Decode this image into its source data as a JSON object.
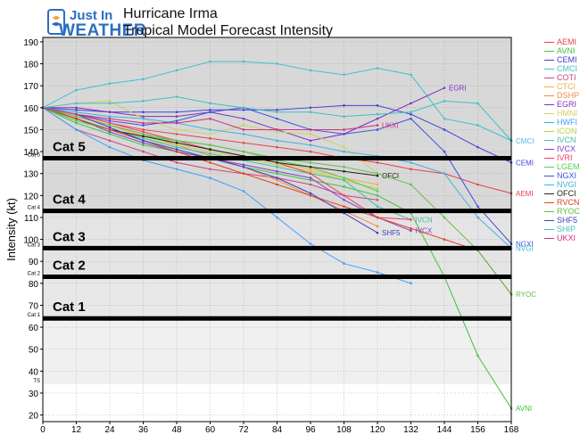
{
  "header": {
    "brand_top": "Just In",
    "brand_bottom": "WEATHER",
    "title_line1": "Hurricane Irma",
    "title_line2": "Tropical Model Forecast Intensity"
  },
  "chart_data": {
    "type": "line",
    "ylabel": "Intensity (kt)",
    "xlabel": "",
    "xlim": [
      0,
      168
    ],
    "ylim": [
      17,
      192
    ],
    "xticks": [
      0,
      12,
      24,
      36,
      48,
      60,
      72,
      84,
      96,
      108,
      120,
      132,
      144,
      156,
      168
    ],
    "yticks": [
      20,
      30,
      40,
      50,
      60,
      70,
      80,
      90,
      100,
      110,
      120,
      130,
      140,
      150,
      160,
      170,
      180,
      190
    ],
    "grid": true,
    "legend_position": "right",
    "categories": [
      {
        "label": "Cat 5",
        "axis_label": "Cat 5",
        "threshold": 137,
        "band_top": 192,
        "band_color": "#d8d8d8"
      },
      {
        "label": "Cat 4",
        "axis_label": "Cat 4",
        "threshold": 113,
        "band_top": 137,
        "band_color": "#d8d8d8"
      },
      {
        "label": "Cat 3",
        "axis_label": "Cat 3",
        "threshold": 96,
        "band_top": 113,
        "band_color": "#e4e4e4"
      },
      {
        "label": "Cat 2",
        "axis_label": "Cat 2",
        "threshold": 83,
        "band_top": 96,
        "band_color": "#e4e4e4"
      },
      {
        "label": "Cat 1",
        "axis_label": "Cat 1",
        "threshold": 64,
        "band_top": 83,
        "band_color": "#e8e8e8"
      },
      {
        "label": "",
        "axis_label": "TS",
        "threshold": 34,
        "band_top": 64,
        "band_color": "#f0f0f0"
      }
    ],
    "series": [
      {
        "name": "AEMI",
        "color": "#e8404a",
        "label": "AEMI",
        "x": [
          0,
          12,
          24,
          36,
          48,
          60,
          72,
          84,
          96,
          108,
          120,
          132,
          144,
          156,
          168
        ],
        "y": [
          160,
          157,
          153,
          150,
          148,
          146,
          144,
          142,
          140,
          137,
          135,
          132,
          130,
          125,
          121
        ]
      },
      {
        "name": "AVNI",
        "color": "#3ec23e",
        "label": "AVNI",
        "x": [
          0,
          12,
          24,
          36,
          48,
          60,
          72,
          84,
          96,
          108,
          120,
          132,
          144,
          156,
          168
        ],
        "y": [
          160,
          153,
          148,
          143,
          140,
          137,
          133,
          130,
          127,
          124,
          120,
          112,
          83,
          47,
          23
        ]
      },
      {
        "name": "CEMI",
        "color": "#4040d8",
        "label": "CEMI",
        "x": [
          0,
          12,
          24,
          36,
          48,
          60,
          72,
          84,
          96,
          108,
          120,
          132,
          144,
          156,
          168
        ],
        "y": [
          160,
          159,
          158,
          158,
          158,
          159,
          159,
          159,
          160,
          161,
          161,
          157,
          150,
          142,
          135
        ]
      },
      {
        "name": "CMCI",
        "color": "#40c0d0",
        "label": "CMCI",
        "x": [
          0,
          12,
          24,
          36,
          48,
          60,
          72,
          84,
          96,
          108,
          120,
          132,
          144,
          156,
          168
        ],
        "y": [
          160,
          168,
          171,
          173,
          177,
          181,
          181,
          180,
          177,
          175,
          178,
          175,
          155,
          152,
          145
        ]
      },
      {
        "name": "COTI",
        "color": "#d04080",
        "label": null,
        "x": [
          0,
          12,
          24,
          36,
          48,
          60,
          72,
          84,
          96,
          108,
          120
        ],
        "y": [
          160,
          150,
          145,
          140,
          135,
          132,
          130,
          128,
          125,
          120,
          118
        ]
      },
      {
        "name": "CTCI",
        "color": "#f0b040",
        "label": null,
        "x": [
          0,
          12,
          24,
          36,
          48,
          60,
          72,
          84,
          96,
          108,
          120
        ],
        "y": [
          160,
          156,
          152,
          147,
          144,
          141,
          138,
          135,
          132,
          128,
          125
        ]
      },
      {
        "name": "DSHP",
        "color": "#f08c40",
        "label": null,
        "x": [
          0,
          12,
          24,
          36,
          48,
          60,
          72,
          84,
          96,
          108,
          120
        ],
        "y": [
          160,
          156,
          152,
          148,
          143,
          138,
          133,
          127,
          120,
          113,
          106
        ]
      },
      {
        "name": "EGRI",
        "color": "#8030c0",
        "label": "EGRI",
        "x": [
          0,
          12,
          24,
          36,
          48,
          60,
          72,
          84,
          96,
          108,
          120,
          132,
          144
        ],
        "y": [
          160,
          160,
          158,
          156,
          156,
          158,
          155,
          150,
          145,
          148,
          155,
          162,
          169
        ]
      },
      {
        "name": "HMNI",
        "color": "#d0d060",
        "label": null,
        "x": [
          0,
          12,
          24,
          36,
          48,
          60,
          72,
          84,
          96,
          108,
          120
        ],
        "y": [
          160,
          162,
          163,
          155,
          150,
          148,
          152,
          149,
          148,
          142,
          130
        ]
      },
      {
        "name": "HWFI",
        "color": "#40a0ff",
        "label": null,
        "x": [
          0,
          12,
          24,
          36,
          48,
          60,
          72,
          84,
          96,
          108,
          120,
          132
        ],
        "y": [
          160,
          150,
          142,
          136,
          132,
          128,
          122,
          110,
          98,
          89,
          85,
          80
        ]
      },
      {
        "name": "ICON",
        "color": "#b8d040",
        "label": null,
        "x": [
          0,
          12,
          24,
          36,
          48,
          60,
          72,
          84,
          96,
          108,
          120
        ],
        "y": [
          160,
          155,
          150,
          146,
          143,
          140,
          137,
          134,
          131,
          127,
          123
        ]
      },
      {
        "name": "IVCN",
        "color": "#40c0a0",
        "label": "IVCN",
        "x": [
          0,
          12,
          24,
          36,
          48,
          60,
          72,
          84,
          96,
          108,
          120,
          132
        ],
        "y": [
          160,
          155,
          150,
          146,
          142,
          139,
          136,
          133,
          130,
          127,
          115,
          109
        ]
      },
      {
        "name": "IVCX",
        "color": "#8040d0",
        "label": "IVCX",
        "x": [
          0,
          12,
          24,
          36,
          48,
          60,
          72,
          84,
          96,
          108,
          120,
          132
        ],
        "y": [
          160,
          155,
          149,
          144,
          140,
          137,
          134,
          131,
          128,
          118,
          110,
          104
        ]
      },
      {
        "name": "IVRI",
        "color": "#f04060",
        "label": null,
        "x": [
          0,
          12,
          24,
          36,
          48,
          60,
          72,
          84,
          96,
          108,
          120,
          132
        ],
        "y": [
          160,
          157,
          153,
          149,
          145,
          141,
          138,
          135,
          130,
          120,
          110,
          109
        ]
      },
      {
        "name": "LGEM",
        "color": "#50d050",
        "label": null,
        "x": [
          0,
          12,
          24,
          36,
          48,
          60,
          72,
          84,
          96,
          108,
          120
        ],
        "y": [
          160,
          154,
          150,
          147,
          145,
          143,
          140,
          136,
          133,
          128,
          122
        ]
      },
      {
        "name": "NGXI",
        "color": "#4050e0",
        "label": "NGXI",
        "x": [
          0,
          12,
          24,
          36,
          48,
          60,
          72,
          84,
          96,
          108,
          120,
          132,
          144,
          156,
          168
        ],
        "y": [
          160,
          157,
          154,
          152,
          154,
          158,
          160,
          155,
          150,
          148,
          150,
          155,
          140,
          115,
          98
        ]
      },
      {
        "name": "NVGI",
        "color": "#40b0e0",
        "label": "NVGI",
        "x": [
          0,
          12,
          24,
          36,
          48,
          60,
          72,
          84,
          96,
          108,
          120,
          132,
          144,
          156,
          168
        ],
        "y": [
          160,
          158,
          156,
          155,
          153,
          150,
          148,
          145,
          143,
          140,
          138,
          135,
          130,
          110,
          96
        ]
      },
      {
        "name": "OFCI",
        "color": "#202020",
        "label": "OFCI",
        "x": [
          0,
          12,
          24,
          36,
          48,
          60,
          72,
          84,
          96,
          108,
          120
        ],
        "y": [
          160,
          155,
          150,
          147,
          144,
          141,
          138,
          135,
          133,
          131,
          129
        ]
      },
      {
        "name": "RVCN",
        "color": "#e04020",
        "label": null,
        "x": [
          0,
          12,
          24,
          36,
          48,
          60,
          72,
          84,
          96,
          108,
          120,
          132,
          144,
          156,
          168
        ],
        "y": [
          160,
          155,
          150,
          145,
          140,
          135,
          130,
          125,
          120,
          115,
          110,
          105,
          100,
          95,
          75
        ]
      },
      {
        "name": "RYOC",
        "color": "#60c040",
        "label": "RYOC",
        "x": [
          0,
          12,
          24,
          36,
          48,
          60,
          72,
          84,
          96,
          108,
          120,
          132,
          144,
          156,
          168
        ],
        "y": [
          160,
          156,
          152,
          148,
          145,
          143,
          140,
          137,
          135,
          133,
          130,
          125,
          110,
          95,
          75
        ]
      },
      {
        "name": "SHF5",
        "color": "#4040c0",
        "label": "SHF5",
        "x": [
          0,
          12,
          24,
          36,
          48,
          60,
          72,
          84,
          96,
          108,
          120
        ],
        "y": [
          160,
          157,
          151,
          145,
          141,
          137,
          133,
          128,
          121,
          112,
          103
        ]
      },
      {
        "name": "SHIP",
        "color": "#40c0c0",
        "label": null,
        "x": [
          0,
          12,
          24,
          36,
          48,
          60,
          72,
          84,
          96,
          108,
          120,
          132,
          144,
          156,
          168
        ],
        "y": [
          160,
          162,
          162,
          163,
          165,
          162,
          160,
          158,
          158,
          156,
          157,
          158,
          163,
          162,
          145
        ]
      },
      {
        "name": "UKXI",
        "color": "#d0307f",
        "label": "UKXI",
        "x": [
          0,
          12,
          24,
          36,
          48,
          60,
          72,
          84,
          96,
          108,
          120
        ],
        "y": [
          160,
          157,
          155,
          153,
          153,
          155,
          150,
          150,
          150,
          150,
          152
        ]
      }
    ]
  }
}
